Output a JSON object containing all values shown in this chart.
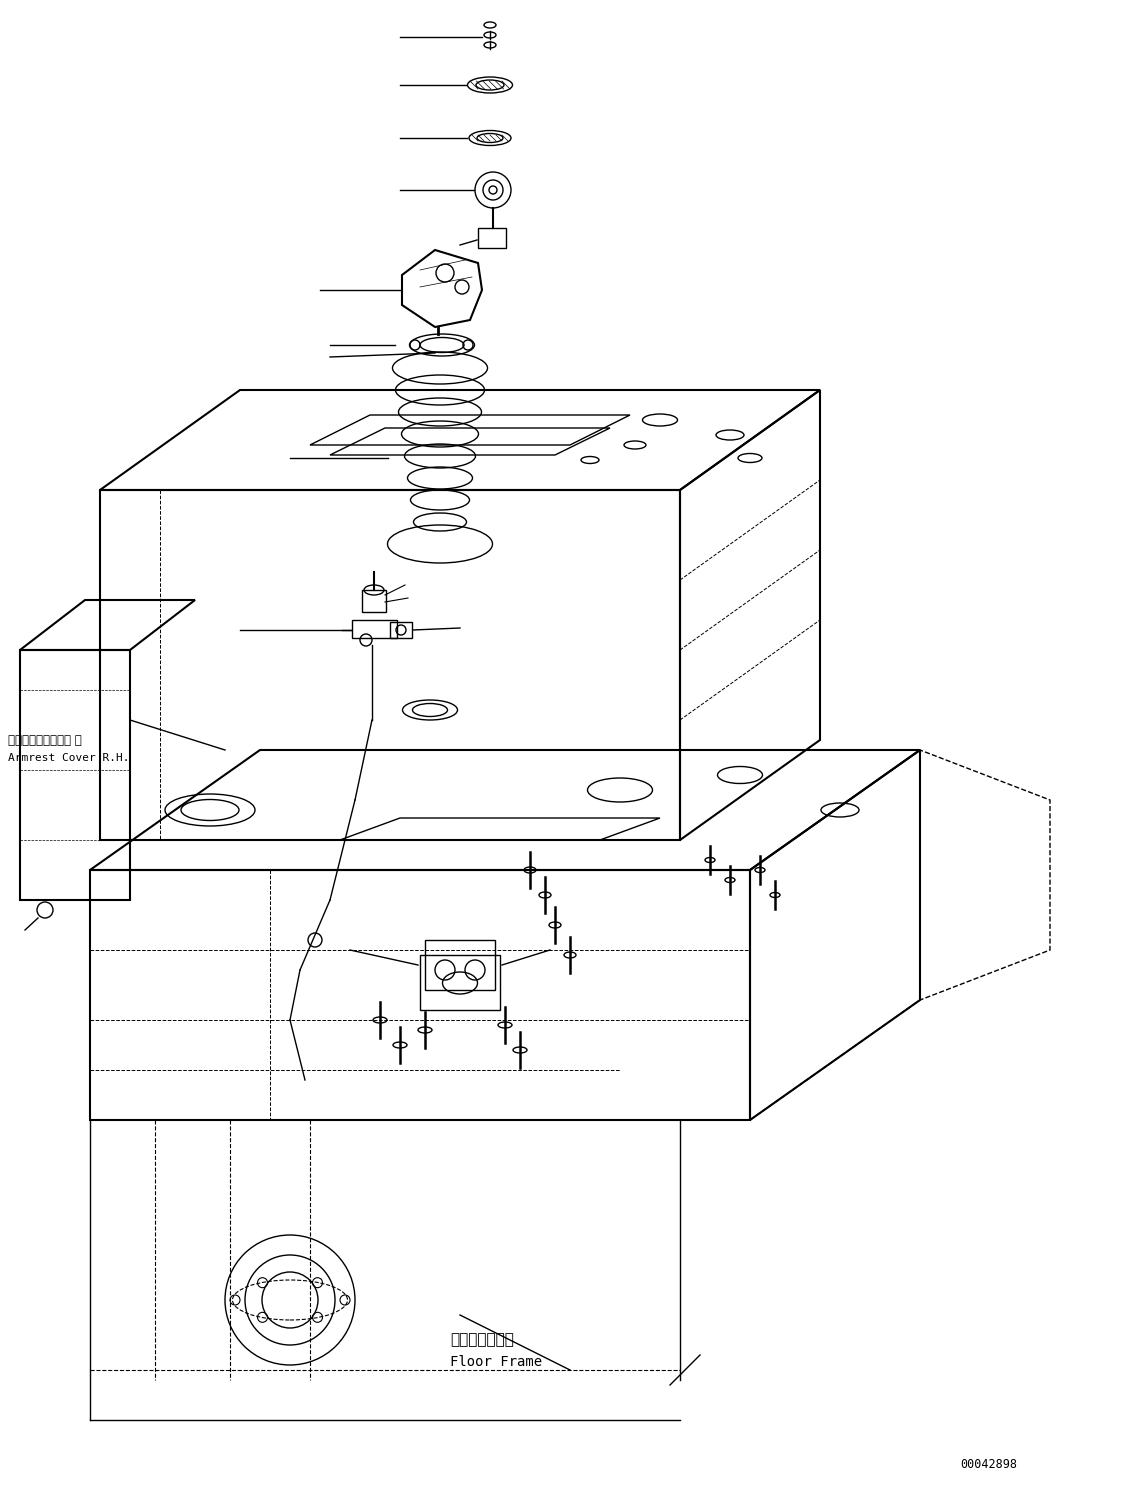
{
  "figure_width": 11.47,
  "figure_height": 14.89,
  "dpi": 100,
  "background_color": "#ffffff",
  "label_armrest_jp": "アームレストカバー 右",
  "label_armrest_en": "Armrest Cover R.H.",
  "label_floor_jp": "フロアフレーム",
  "label_floor_en": "Floor Frame",
  "doc_number": "00042898",
  "line_color": "#000000",
  "line_width": 1.0
}
